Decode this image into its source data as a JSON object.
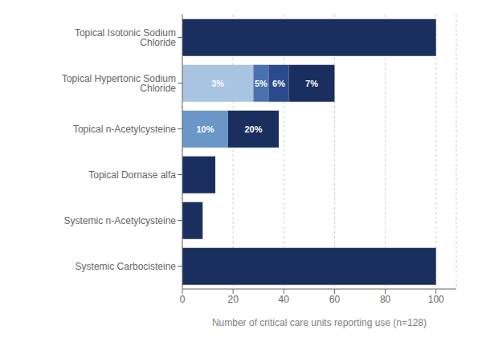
{
  "chart_data": {
    "type": "bar",
    "orientation": "horizontal",
    "stacked": true,
    "categories": [
      "Systemic Carbocisteine",
      "Systemic n-Acetylcysteine",
      "Topical Dornase alfa",
      "Topical n-Acetylcysteine",
      "Topical Hypertonic Sodium Chloride",
      "Topical Isotonic Sodium Chloride"
    ],
    "series": [
      {
        "values": [
          100,
          8,
          13,
          18,
          28,
          100
        ],
        "colors": [
          "#1b2f5e",
          "#1b2f5e",
          "#1b2f5e",
          "#6a96c8",
          "#a8c4e0",
          "#1b2f5e"
        ],
        "annotations": [
          null,
          null,
          null,
          "10%",
          "3%",
          null
        ]
      },
      {
        "values": [
          null,
          null,
          null,
          20,
          6,
          null
        ],
        "colors": [
          null,
          null,
          null,
          "#1b2f5e",
          "#4a72b0",
          null
        ],
        "annotations": [
          null,
          null,
          null,
          "20%",
          "5%",
          null
        ]
      },
      {
        "values": [
          null,
          null,
          null,
          null,
          8,
          null
        ],
        "colors": [
          null,
          null,
          null,
          null,
          "#2a4a8c",
          null
        ],
        "annotations": [
          null,
          null,
          null,
          null,
          "6%",
          null
        ]
      },
      {
        "values": [
          null,
          null,
          null,
          null,
          18,
          null
        ],
        "colors": [
          null,
          null,
          null,
          null,
          "#1b2f5e",
          null
        ],
        "annotations": [
          null,
          null,
          null,
          null,
          "7%",
          null
        ]
      }
    ],
    "xlim": [
      0,
      108
    ],
    "xticks": [
      0,
      20,
      40,
      60,
      80,
      100
    ],
    "xlabel": "Number of critical care units reporting use (n=128)",
    "grid": true
  }
}
